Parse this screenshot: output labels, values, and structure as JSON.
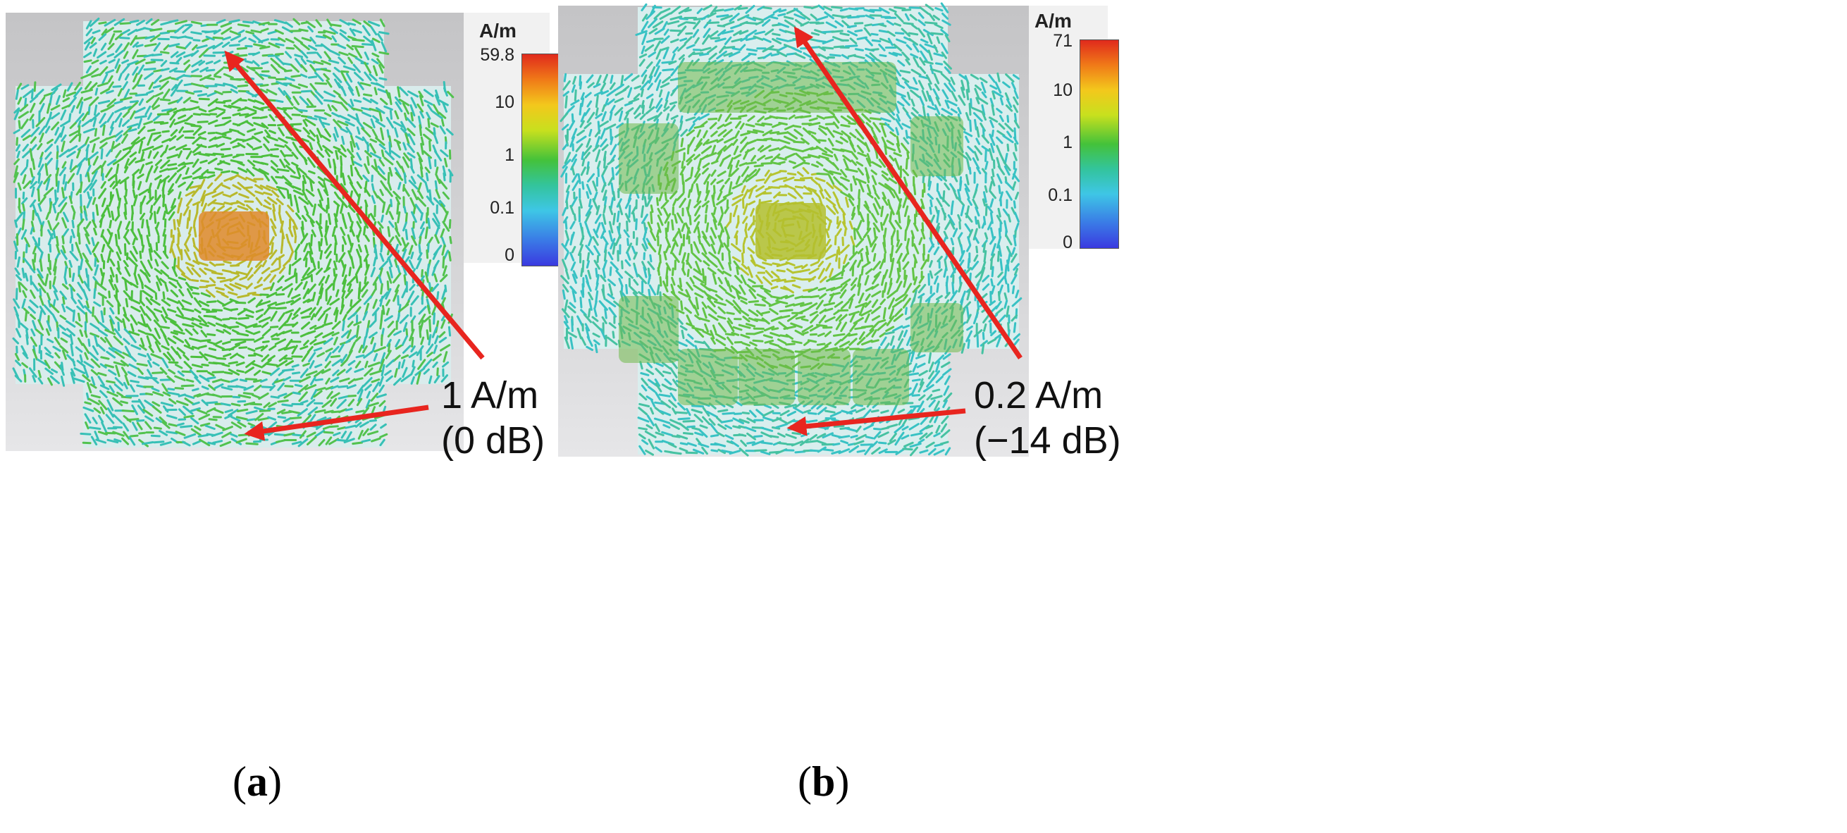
{
  "panels": [
    {
      "id": "a",
      "caption_letter": "a",
      "legend": {
        "unit": "A/m",
        "ticks": [
          "59.8",
          "10",
          "1",
          "0.1",
          "0"
        ]
      },
      "annotation": {
        "value": "1 A/m",
        "db": "(0 dB)"
      },
      "colors": {
        "base": "#3cc07a",
        "center": "#e07a22"
      }
    },
    {
      "id": "b",
      "caption_letter": "b",
      "legend": {
        "unit": "A/m",
        "ticks": [
          "71",
          "10",
          "1",
          "0.1",
          "0"
        ]
      },
      "annotation": {
        "value": "0.2 A/m",
        "db": "(−14 dB)"
      },
      "colors": {
        "base": "#3cc6a8",
        "center": "#b4c82a"
      }
    }
  ],
  "arrow_color": "#e8251f"
}
